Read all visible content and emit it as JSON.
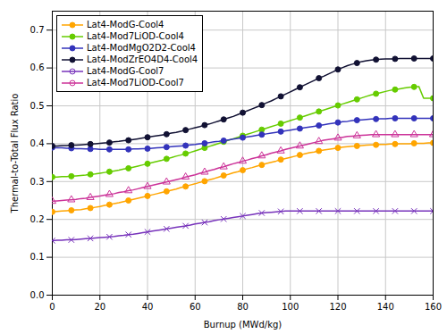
{
  "chart_data": {
    "type": "line",
    "x_label": "Burnup (MWd/kg)",
    "y_label": "Thermal-to-Total Flux Ratio",
    "xlim": [
      0,
      160
    ],
    "ylim": [
      0.0,
      0.75
    ],
    "xticks": [
      0,
      20,
      40,
      60,
      80,
      100,
      120,
      140,
      160
    ],
    "yticks": [
      {
        "value": 0.0,
        "label": "0.0"
      },
      0.1,
      0.2,
      0.3,
      0.4,
      0.5,
      0.6,
      0.7
    ],
    "grid": true,
    "legend": "upper left",
    "x": [
      0,
      2,
      4,
      6,
      8,
      10,
      12,
      14,
      16,
      18,
      20,
      22,
      24,
      26,
      28,
      30,
      32,
      34,
      36,
      38,
      40,
      42,
      44,
      46,
      48,
      50,
      52,
      54,
      56,
      58,
      60,
      62,
      64,
      66,
      68,
      70,
      72,
      74,
      76,
      78,
      80,
      82,
      84,
      86,
      88,
      90,
      92,
      94,
      96,
      98,
      100,
      102,
      104,
      106,
      108,
      110,
      112,
      114,
      116,
      118,
      120,
      122,
      124,
      126,
      128,
      130,
      132,
      134,
      136,
      138,
      140,
      142,
      144,
      146,
      148,
      150,
      152,
      154,
      156,
      158,
      160
    ],
    "series": [
      {
        "name": "Lat4-ModG-Cool4",
        "color": "#FFA500",
        "marker": "circle",
        "line_style": "solid",
        "values": [
          0.22,
          0.221,
          0.222,
          0.223,
          0.224,
          0.225,
          0.226,
          0.228,
          0.23,
          0.232,
          0.234,
          0.237,
          0.239,
          0.242,
          0.244,
          0.247,
          0.25,
          0.253,
          0.256,
          0.259,
          0.262,
          0.265,
          0.268,
          0.271,
          0.274,
          0.277,
          0.28,
          0.284,
          0.287,
          0.291,
          0.294,
          0.298,
          0.301,
          0.305,
          0.308,
          0.312,
          0.316,
          0.319,
          0.323,
          0.326,
          0.33,
          0.334,
          0.337,
          0.341,
          0.344,
          0.348,
          0.351,
          0.354,
          0.358,
          0.361,
          0.364,
          0.367,
          0.37,
          0.373,
          0.376,
          0.378,
          0.381,
          0.383,
          0.385,
          0.387,
          0.389,
          0.391,
          0.392,
          0.393,
          0.394,
          0.395,
          0.396,
          0.397,
          0.397,
          0.398,
          0.398,
          0.399,
          0.399,
          0.4,
          0.4,
          0.4,
          0.401,
          0.401,
          0.401,
          0.402,
          0.402
        ]
      },
      {
        "name": "Lat4-Mod7LiOD-Cool4",
        "color": "#66CC00",
        "marker": "circle",
        "line_style": "solid",
        "values": [
          0.312,
          0.312,
          0.313,
          0.313,
          0.314,
          0.315,
          0.316,
          0.317,
          0.319,
          0.32,
          0.322,
          0.324,
          0.326,
          0.328,
          0.33,
          0.333,
          0.335,
          0.338,
          0.341,
          0.344,
          0.347,
          0.35,
          0.353,
          0.356,
          0.36,
          0.363,
          0.367,
          0.37,
          0.374,
          0.377,
          0.381,
          0.385,
          0.389,
          0.393,
          0.397,
          0.401,
          0.405,
          0.409,
          0.413,
          0.417,
          0.421,
          0.425,
          0.429,
          0.433,
          0.437,
          0.441,
          0.445,
          0.449,
          0.453,
          0.457,
          0.461,
          0.465,
          0.469,
          0.473,
          0.477,
          0.481,
          0.485,
          0.489,
          0.493,
          0.497,
          0.501,
          0.505,
          0.509,
          0.513,
          0.517,
          0.521,
          0.525,
          0.529,
          0.532,
          0.535,
          0.538,
          0.541,
          0.543,
          0.545,
          0.547,
          0.549,
          0.55,
          0.551,
          0.52,
          0.52,
          0.52
        ]
      },
      {
        "name": "Lat4-ModMgO2D2-Cool4",
        "color": "#3333BB",
        "marker": "circle",
        "line_style": "solid",
        "values": [
          0.39,
          0.389,
          0.389,
          0.388,
          0.388,
          0.387,
          0.387,
          0.386,
          0.386,
          0.386,
          0.385,
          0.385,
          0.385,
          0.385,
          0.385,
          0.385,
          0.385,
          0.386,
          0.386,
          0.387,
          0.387,
          0.388,
          0.389,
          0.39,
          0.391,
          0.392,
          0.393,
          0.394,
          0.395,
          0.397,
          0.398,
          0.4,
          0.401,
          0.403,
          0.405,
          0.406,
          0.408,
          0.41,
          0.412,
          0.414,
          0.416,
          0.418,
          0.42,
          0.422,
          0.424,
          0.426,
          0.428,
          0.43,
          0.432,
          0.434,
          0.436,
          0.438,
          0.44,
          0.442,
          0.444,
          0.446,
          0.448,
          0.45,
          0.452,
          0.454,
          0.456,
          0.458,
          0.459,
          0.461,
          0.462,
          0.463,
          0.464,
          0.465,
          0.465,
          0.466,
          0.466,
          0.467,
          0.467,
          0.467,
          0.467,
          0.467,
          0.467,
          0.467,
          0.467,
          0.467,
          0.467
        ]
      },
      {
        "name": "Lat4-ModZrEO4D4-Cool4",
        "color": "#111133",
        "marker": "circle",
        "line_style": "solid",
        "values": [
          0.394,
          0.394,
          0.395,
          0.395,
          0.396,
          0.396,
          0.397,
          0.398,
          0.399,
          0.4,
          0.401,
          0.402,
          0.403,
          0.405,
          0.406,
          0.408,
          0.409,
          0.411,
          0.413,
          0.415,
          0.417,
          0.419,
          0.421,
          0.423,
          0.425,
          0.428,
          0.43,
          0.433,
          0.436,
          0.439,
          0.442,
          0.445,
          0.449,
          0.452,
          0.456,
          0.46,
          0.464,
          0.468,
          0.472,
          0.477,
          0.482,
          0.487,
          0.492,
          0.497,
          0.502,
          0.508,
          0.513,
          0.519,
          0.525,
          0.531,
          0.537,
          0.543,
          0.549,
          0.555,
          0.561,
          0.567,
          0.573,
          0.578,
          0.584,
          0.59,
          0.596,
          0.601,
          0.606,
          0.61,
          0.613,
          0.617,
          0.619,
          0.621,
          0.622,
          0.623,
          0.624,
          0.624,
          0.624,
          0.625,
          0.625,
          0.625,
          0.625,
          0.625,
          0.625,
          0.625,
          0.625
        ]
      },
      {
        "name": "Lat4-ModG-Cool7",
        "color": "#7733BB",
        "marker": "times",
        "line_style": "solid",
        "values": [
          0.144,
          0.145,
          0.145,
          0.146,
          0.146,
          0.147,
          0.148,
          0.149,
          0.15,
          0.151,
          0.152,
          0.153,
          0.154,
          0.155,
          0.157,
          0.158,
          0.16,
          0.161,
          0.163,
          0.165,
          0.167,
          0.169,
          0.171,
          0.173,
          0.175,
          0.177,
          0.179,
          0.181,
          0.183,
          0.185,
          0.188,
          0.19,
          0.192,
          0.194,
          0.197,
          0.199,
          0.201,
          0.203,
          0.205,
          0.207,
          0.209,
          0.211,
          0.213,
          0.215,
          0.217,
          0.218,
          0.219,
          0.22,
          0.221,
          0.222,
          0.222,
          0.222,
          0.222,
          0.222,
          0.222,
          0.222,
          0.222,
          0.222,
          0.222,
          0.222,
          0.222,
          0.222,
          0.222,
          0.222,
          0.222,
          0.222,
          0.222,
          0.222,
          0.222,
          0.222,
          0.222,
          0.222,
          0.222,
          0.222,
          0.222,
          0.222,
          0.222,
          0.222,
          0.222,
          0.222,
          0.222
        ]
      },
      {
        "name": "Lat4-Mod7LiOD-Cool7",
        "color": "#CC3399",
        "marker": "triangle-open",
        "line_style": "solid",
        "values": [
          0.248,
          0.249,
          0.25,
          0.251,
          0.252,
          0.253,
          0.255,
          0.256,
          0.258,
          0.26,
          0.262,
          0.264,
          0.266,
          0.268,
          0.271,
          0.273,
          0.276,
          0.278,
          0.281,
          0.284,
          0.287,
          0.29,
          0.293,
          0.296,
          0.299,
          0.302,
          0.305,
          0.308,
          0.312,
          0.315,
          0.318,
          0.322,
          0.325,
          0.329,
          0.332,
          0.336,
          0.339,
          0.343,
          0.347,
          0.35,
          0.354,
          0.357,
          0.361,
          0.364,
          0.368,
          0.371,
          0.375,
          0.378,
          0.381,
          0.385,
          0.388,
          0.391,
          0.394,
          0.397,
          0.4,
          0.403,
          0.406,
          0.409,
          0.411,
          0.413,
          0.415,
          0.417,
          0.419,
          0.42,
          0.421,
          0.422,
          0.423,
          0.424,
          0.424,
          0.424,
          0.424,
          0.424,
          0.424,
          0.424,
          0.424,
          0.424,
          0.424,
          0.424,
          0.424,
          0.424,
          0.424
        ]
      }
    ]
  }
}
